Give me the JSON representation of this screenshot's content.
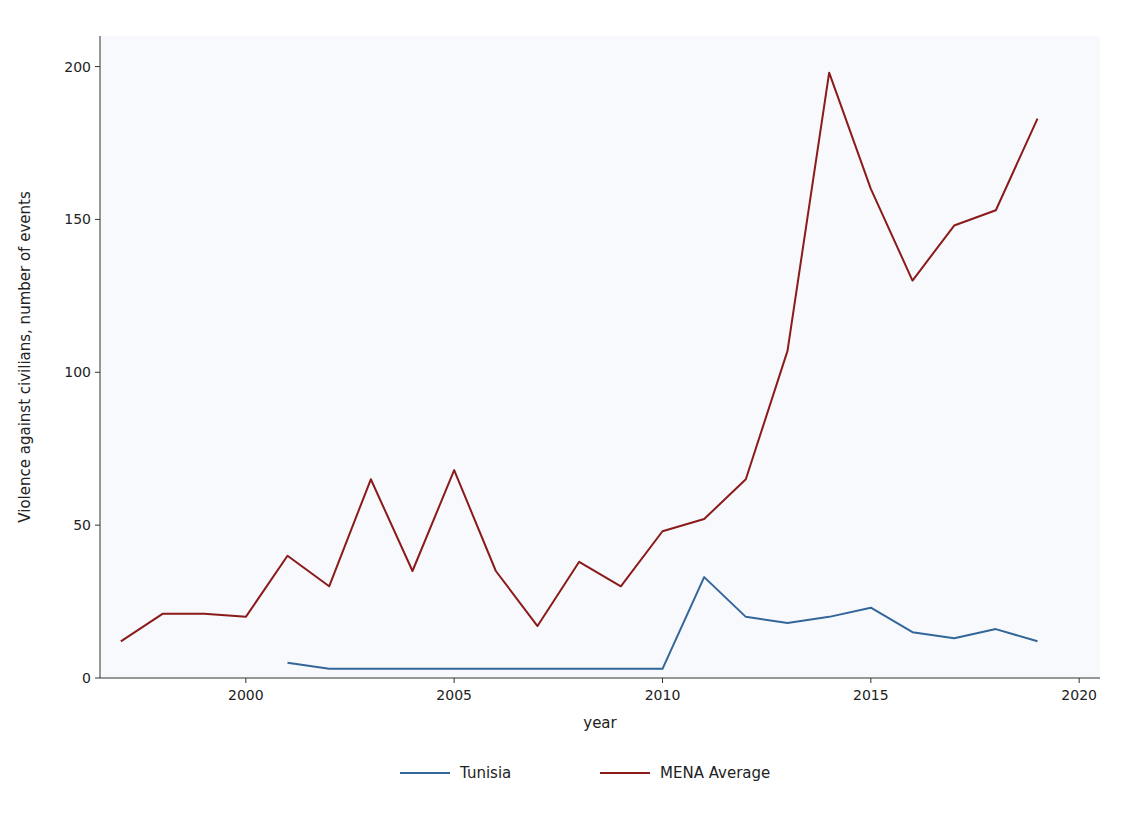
{
  "chart_data": {
    "type": "line",
    "xlabel": "year",
    "ylabel": "Violence against civilians, number of events",
    "x": [
      1997,
      1998,
      1999,
      2000,
      2001,
      2002,
      2003,
      2004,
      2005,
      2006,
      2007,
      2008,
      2009,
      2010,
      2011,
      2012,
      2013,
      2014,
      2015,
      2016,
      2017,
      2018,
      2019
    ],
    "series": [
      {
        "name": "Tunisia",
        "color": "#336699",
        "values": [
          null,
          null,
          null,
          null,
          5,
          3,
          3,
          3,
          3,
          3,
          3,
          3,
          3,
          3,
          33,
          20,
          18,
          20,
          23,
          15,
          13,
          16,
          12
        ]
      },
      {
        "name": "MENA Average",
        "color": "#8b1a1a",
        "values": [
          12,
          21,
          21,
          20,
          40,
          30,
          65,
          35,
          68,
          35,
          17,
          38,
          30,
          48,
          52,
          65,
          107,
          198,
          160,
          130,
          148,
          153,
          183
        ]
      }
    ],
    "xlim": [
      1996.5,
      2020.5
    ],
    "ylim": [
      0,
      210
    ],
    "xticks": [
      2000,
      2005,
      2010,
      2015,
      2020
    ],
    "yticks": [
      0,
      50,
      100,
      150,
      200
    ],
    "grid": false,
    "legend": "bottom"
  }
}
